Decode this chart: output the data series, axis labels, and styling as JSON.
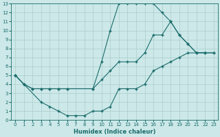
{
  "xlabel": "Humidex (Indice chaleur)",
  "bg_color": "#cce8e8",
  "line_color": "#1a6b6b",
  "grid_color": "#aacccc",
  "xlim": [
    -0.5,
    23.5
  ],
  "ylim": [
    0,
    13
  ],
  "xticks": [
    0,
    1,
    2,
    3,
    4,
    5,
    6,
    7,
    8,
    9,
    10,
    11,
    12,
    13,
    14,
    15,
    16,
    17,
    18,
    19,
    20,
    21,
    22,
    23
  ],
  "yticks": [
    0,
    1,
    2,
    3,
    4,
    5,
    6,
    7,
    8,
    9,
    10,
    11,
    12,
    13
  ],
  "line1": {
    "x": [
      0,
      1,
      2,
      3,
      4,
      5,
      6,
      9,
      10,
      11,
      12,
      13,
      14,
      15,
      16,
      17,
      18,
      19,
      20,
      21,
      22,
      23
    ],
    "y": [
      5,
      4,
      3.5,
      3.5,
      3.5,
      3.5,
      3.5,
      3.5,
      6.5,
      10,
      13,
      13,
      13,
      13,
      13,
      12,
      11,
      9.5,
      8.5,
      7.5,
      7.5,
      7.5
    ]
  },
  "line2": {
    "x": [
      0,
      1,
      2,
      3,
      4,
      5,
      6,
      9,
      10,
      11,
      12,
      13,
      14,
      15,
      16,
      17,
      18,
      19,
      20,
      21,
      22,
      23
    ],
    "y": [
      5,
      4,
      3.5,
      3.5,
      3.5,
      3.5,
      3.5,
      3.5,
      4.5,
      5.5,
      6.5,
      6.5,
      6.5,
      7.5,
      9.5,
      9.5,
      11,
      9.5,
      8.5,
      7.5,
      7.5,
      7.5
    ]
  },
  "line3": {
    "x": [
      0,
      1,
      3,
      4,
      5,
      6,
      7,
      8,
      9,
      10,
      11,
      12,
      13,
      14,
      15,
      16,
      17,
      18,
      19,
      20,
      21,
      22
    ],
    "y": [
      5,
      4,
      2,
      1.5,
      1,
      0.5,
      0.5,
      0.5,
      1,
      1,
      1.5,
      3.5,
      3.5,
      3.5,
      4,
      5.5,
      6,
      6.5,
      7,
      7.5,
      7.5,
      7.5
    ]
  }
}
